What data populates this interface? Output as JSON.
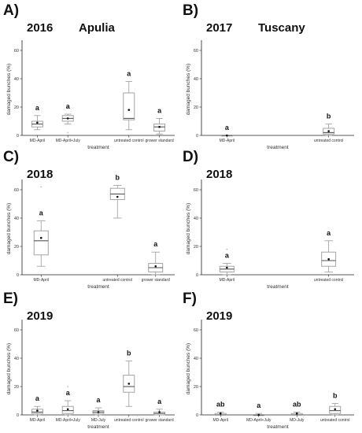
{
  "chart_data": [
    {
      "type": "box",
      "panel": "A)",
      "year": "2016",
      "region": "Apulia",
      "ylabel": "damaged bunches (%)",
      "xlabel": "treatment",
      "ylim": [
        0,
        65
      ],
      "yticks": [
        0,
        20,
        40,
        60
      ],
      "categories": [
        "MD-April",
        "MD-April+July",
        "untreated control",
        "grower standard"
      ],
      "positions": [
        1,
        2,
        4,
        5
      ],
      "ncat": 5,
      "boxes": [
        {
          "min": 4,
          "q1": 6,
          "median": 8,
          "q3": 10,
          "max": 14,
          "mean": 9,
          "outliers": [],
          "label": "a"
        },
        {
          "min": 8,
          "q1": 10,
          "median": 12,
          "q3": 14,
          "max": 15,
          "mean": 12,
          "outliers": [
            2,
            20
          ],
          "label": "a"
        },
        {
          "min": 4,
          "q1": 11,
          "median": 12,
          "q3": 30,
          "max": 38,
          "mean": 18,
          "outliers": [],
          "label": "a"
        },
        {
          "min": 1,
          "q1": 3,
          "median": 6,
          "q3": 8,
          "max": 12,
          "mean": 6,
          "outliers": [],
          "label": "a"
        }
      ]
    },
    {
      "type": "box",
      "panel": "B)",
      "year": "2017",
      "region": "Tuscany",
      "ylabel": "damaged bunches (%)",
      "xlabel": "treatment",
      "ylim": [
        0,
        65
      ],
      "yticks": [
        0,
        20,
        40,
        60
      ],
      "categories": [
        "MD-April",
        "untreated control"
      ],
      "positions": [
        1,
        3
      ],
      "ncat": 3,
      "boxes": [
        {
          "min": 0,
          "q1": 0,
          "median": 0,
          "q3": 0,
          "max": 0,
          "mean": 0,
          "outliers": [],
          "label": "a"
        },
        {
          "min": 0,
          "q1": 1,
          "median": 2,
          "q3": 5,
          "max": 8,
          "mean": 3,
          "outliers": [],
          "label": "b"
        }
      ]
    },
    {
      "type": "box",
      "panel": "C)",
      "year": "2018",
      "region": "",
      "ylabel": "damaged bunches (%)",
      "xlabel": "treatment",
      "ylim": [
        0,
        65
      ],
      "yticks": [
        0,
        20,
        40,
        60
      ],
      "categories": [
        "MD-April",
        "untreated control",
        "grower standard"
      ],
      "positions": [
        1,
        3,
        4
      ],
      "ncat": 4,
      "boxes": [
        {
          "min": 6,
          "q1": 14,
          "median": 24,
          "q3": 31,
          "max": 38,
          "mean": 26,
          "outliers": [
            62
          ],
          "label": "a"
        },
        {
          "min": 40,
          "q1": 53,
          "median": 57,
          "q3": 61,
          "max": 63,
          "mean": 55,
          "outliers": [],
          "label": "b"
        },
        {
          "min": 0,
          "q1": 2,
          "median": 5,
          "q3": 8,
          "max": 16,
          "mean": 6,
          "outliers": [],
          "label": "a"
        }
      ]
    },
    {
      "type": "box",
      "panel": "D)",
      "year": "2018",
      "region": "",
      "ylabel": "damaged bunches (%)",
      "xlabel": "treatment",
      "ylim": [
        0,
        65
      ],
      "yticks": [
        0,
        20,
        40,
        60
      ],
      "categories": [
        "MD-April",
        "untreated control"
      ],
      "positions": [
        1,
        3
      ],
      "ncat": 3,
      "boxes": [
        {
          "min": 0,
          "q1": 2,
          "median": 4,
          "q3": 6,
          "max": 8,
          "mean": 5,
          "outliers": [
            18
          ],
          "label": "a"
        },
        {
          "min": 2,
          "q1": 6,
          "median": 10,
          "q3": 16,
          "max": 24,
          "mean": 11,
          "outliers": [],
          "label": "a"
        }
      ]
    },
    {
      "type": "box",
      "panel": "E)",
      "year": "2019",
      "region": "",
      "ylabel": "damaged bunches (%)",
      "xlabel": "treatment",
      "ylim": [
        0,
        65
      ],
      "yticks": [
        0,
        20,
        40,
        60
      ],
      "categories": [
        "MD-April",
        "MD-April+July",
        "MD-July",
        "untreated control",
        "grower standard"
      ],
      "positions": [
        1,
        2,
        3,
        4,
        5
      ],
      "ncat": 5,
      "boxes": [
        {
          "min": 0,
          "q1": 1,
          "median": 2,
          "q3": 4,
          "max": 6,
          "mean": 3,
          "outliers": [],
          "label": "a"
        },
        {
          "min": 0,
          "q1": 1,
          "median": 3,
          "q3": 6,
          "max": 10,
          "mean": 4,
          "outliers": [
            20
          ],
          "label": "a"
        },
        {
          "min": 0,
          "q1": 1,
          "median": 2,
          "q3": 3,
          "max": 5,
          "mean": 2,
          "outliers": [],
          "label": "a"
        },
        {
          "min": 6,
          "q1": 16,
          "median": 20,
          "q3": 28,
          "max": 38,
          "mean": 22,
          "outliers": [],
          "label": "b"
        },
        {
          "min": 0,
          "q1": 0,
          "median": 1,
          "q3": 2,
          "max": 4,
          "mean": 2,
          "outliers": [],
          "label": "a"
        }
      ]
    },
    {
      "type": "box",
      "panel": "F)",
      "year": "2019",
      "region": "",
      "ylabel": "damaged bunches (%)",
      "xlabel": "treatment",
      "ylim": [
        0,
        65
      ],
      "yticks": [
        0,
        20,
        40,
        60
      ],
      "categories": [
        "MD-April",
        "MD-April+July",
        "MD-July",
        "untreated control"
      ],
      "positions": [
        1,
        2,
        3,
        4
      ],
      "ncat": 4,
      "boxes": [
        {
          "min": 0,
          "q1": 0,
          "median": 0,
          "q3": 1,
          "max": 2,
          "mean": 1,
          "outliers": [],
          "label": "ab"
        },
        {
          "min": 0,
          "q1": 0,
          "median": 0,
          "q3": 0,
          "max": 1,
          "mean": 0,
          "outliers": [],
          "label": "a"
        },
        {
          "min": 0,
          "q1": 0,
          "median": 0,
          "q3": 1,
          "max": 2,
          "mean": 1,
          "outliers": [],
          "label": "ab"
        },
        {
          "min": 0,
          "q1": 1,
          "median": 3,
          "q3": 6,
          "max": 8,
          "mean": 4,
          "outliers": [],
          "label": "b"
        }
      ]
    }
  ]
}
